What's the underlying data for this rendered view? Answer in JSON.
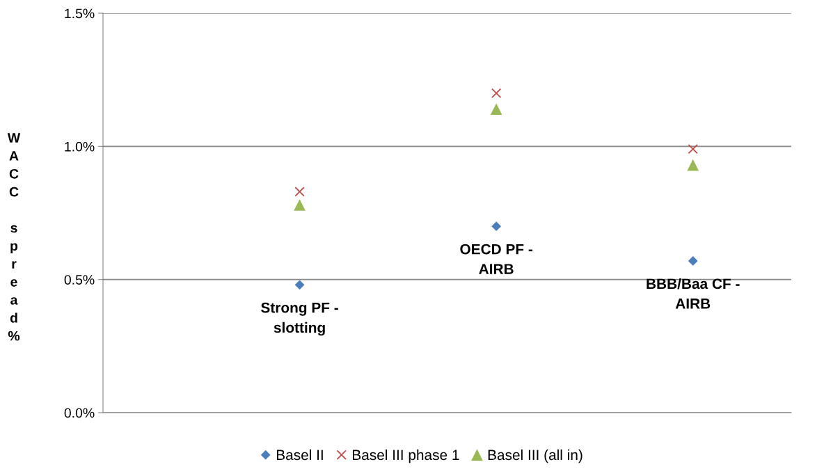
{
  "chart_data": {
    "type": "scatter",
    "ylabel": "WACC spread%",
    "categories": [
      "Strong PF -\nslotting",
      "OECD PF -\nAIRB",
      "BBB/Baa CF -\nAIRB"
    ],
    "series": [
      {
        "name": "Basel II",
        "color": "#4a7ebb",
        "marker": "diamond",
        "values": [
          0.48,
          0.7,
          0.57
        ]
      },
      {
        "name": "Basel III phase 1",
        "color": "#be4b48",
        "marker": "cross",
        "values": [
          0.83,
          1.2,
          0.99
        ]
      },
      {
        "name": "Basel III (all in)",
        "color": "#98b954",
        "marker": "triangle",
        "values": [
          0.78,
          1.14,
          0.93
        ]
      }
    ],
    "ylim": [
      0,
      1.5
    ],
    "yticks": [
      {
        "value": 0,
        "label": "0.0%"
      },
      {
        "value": 0.5,
        "label": "0.5%"
      },
      {
        "value": 1.0,
        "label": "1.0%"
      },
      {
        "value": 1.5,
        "label": "1.5%"
      }
    ],
    "grid": "y",
    "legend": "bottom"
  }
}
